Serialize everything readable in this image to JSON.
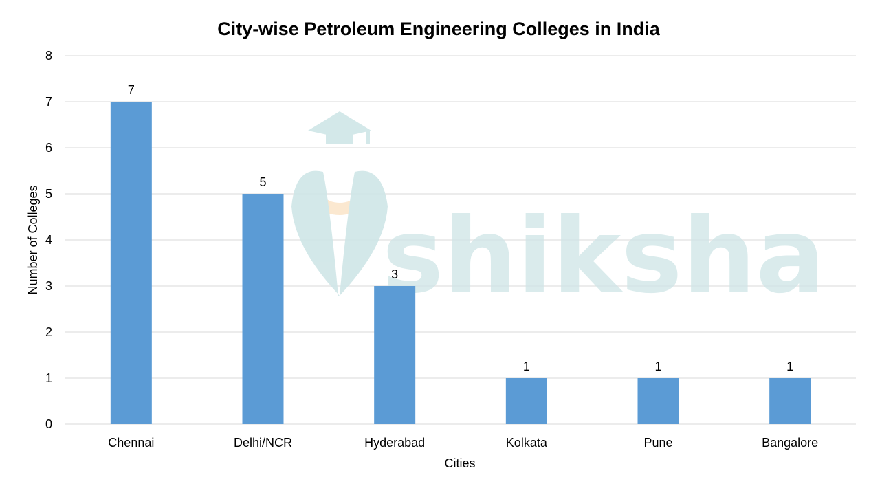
{
  "chart_data": {
    "type": "bar",
    "title": "City-wise Petroleum Engineering Colleges in India",
    "xlabel": "Cities",
    "ylabel": "Number of Colleges",
    "categories": [
      "Chennai",
      "Delhi/NCR",
      "Hyderabad",
      "Kolkata",
      "Pune",
      "Bangalore"
    ],
    "values": [
      7,
      5,
      3,
      1,
      1,
      1
    ],
    "ylim": [
      0,
      8
    ],
    "yticks": [
      0,
      1,
      2,
      3,
      4,
      5,
      6,
      7,
      8
    ],
    "grid": true,
    "data_labels": true,
    "bar_color": "#5b9bd5"
  },
  "watermark": {
    "text": "shiksha",
    "icon": "graduation-cap-logo-icon",
    "color": "#cfe6e7"
  }
}
